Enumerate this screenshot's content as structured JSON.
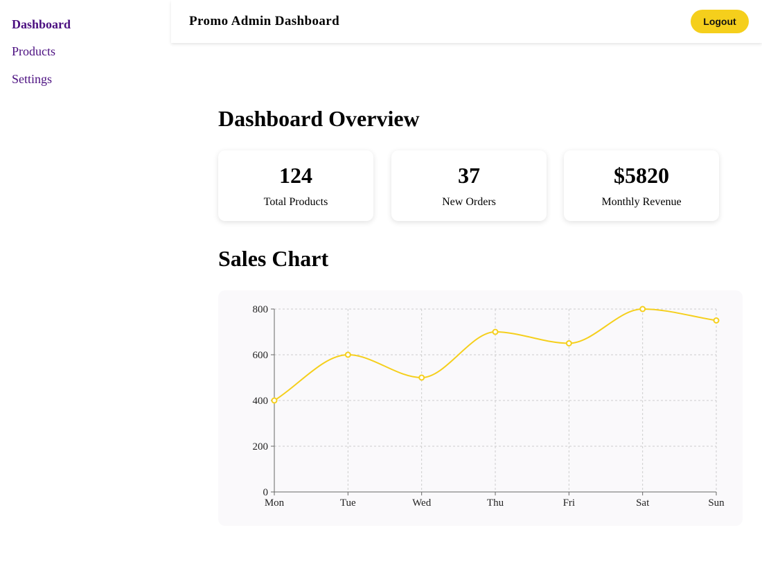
{
  "sidebar": {
    "items": [
      {
        "label": "Dashboard",
        "active": true
      },
      {
        "label": "Products",
        "active": false
      },
      {
        "label": "Settings",
        "active": false
      }
    ],
    "text_color": "#4b0f80"
  },
  "header": {
    "title": "Promo Admin Dashboard",
    "logout_label": "Logout",
    "accent": "#f5cf1c"
  },
  "overview": {
    "heading": "Dashboard Overview",
    "cards": [
      {
        "value": "124",
        "label": "Total Products"
      },
      {
        "value": "37",
        "label": "New Orders"
      },
      {
        "value": "$5820",
        "label": "Monthly Revenue"
      }
    ]
  },
  "sales": {
    "heading": "Sales Chart"
  },
  "chart_data": {
    "type": "line",
    "categories": [
      "Mon",
      "Tue",
      "Wed",
      "Thu",
      "Fri",
      "Sat",
      "Sun"
    ],
    "series": [
      {
        "values": [
          400,
          600,
          500,
          700,
          650,
          800,
          750
        ],
        "color": "#f5cf1c"
      }
    ],
    "ylim": [
      0,
      800
    ],
    "yticks": [
      0,
      200,
      400,
      600,
      800
    ],
    "grid": true,
    "curve": "smooth"
  }
}
